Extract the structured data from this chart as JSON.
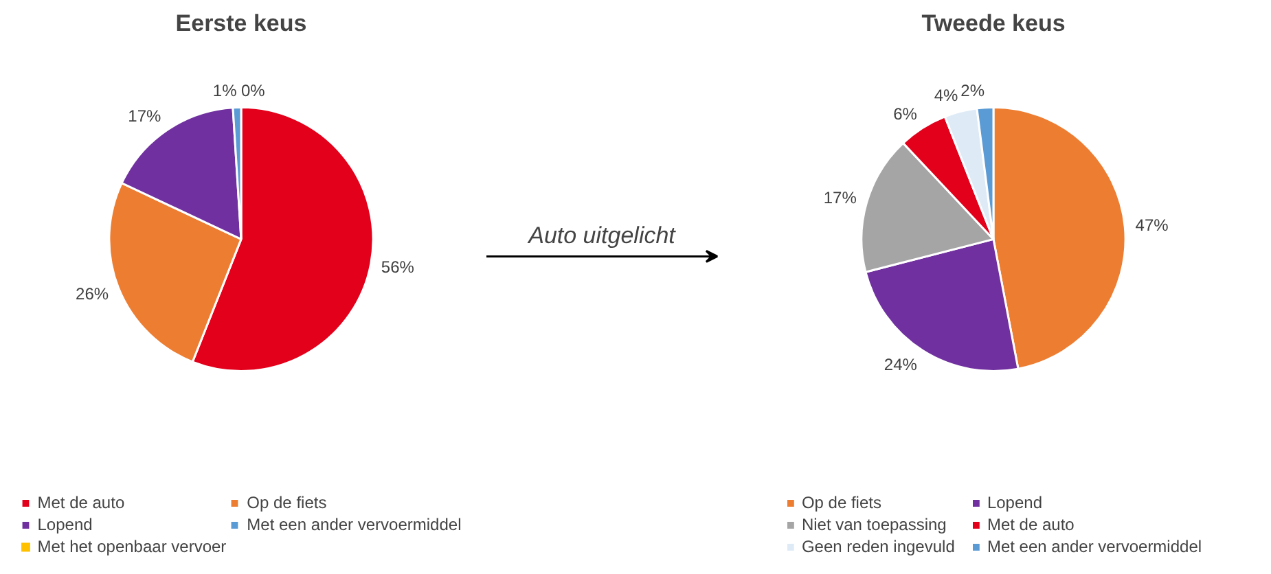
{
  "chart_data": [
    {
      "type": "pie",
      "title": "Eerste keus",
      "categories": [
        "Met de auto",
        "Op de fiets",
        "Lopend",
        "Met een ander vervoermiddel",
        "Met het openbaar vervoer"
      ],
      "values": [
        56,
        26,
        17,
        1,
        0
      ],
      "colors": [
        "#e3001b",
        "#ed7d31",
        "#7030a0",
        "#5b9bd5",
        "#ffc000"
      ],
      "value_labels": [
        "56%",
        "26%",
        "17%",
        "1%",
        "0%"
      ],
      "legend": "bottom",
      "annotations": [
        "Auto uitgelicht"
      ]
    },
    {
      "type": "pie",
      "title": "Tweede keus",
      "categories": [
        "Op de fiets",
        "Lopend",
        "Niet van toepassing",
        "Met de auto",
        "Geen reden ingevuld",
        "Met een ander vervoermiddel"
      ],
      "values": [
        47,
        24,
        17,
        6,
        4,
        2
      ],
      "colors": [
        "#ed7d31",
        "#7030a0",
        "#a5a5a5",
        "#e3001b",
        "#deebf7",
        "#5b9bd5"
      ],
      "value_labels": [
        "47%",
        "24%",
        "17%",
        "6%",
        "4%",
        "2%"
      ],
      "legend": "bottom"
    }
  ]
}
